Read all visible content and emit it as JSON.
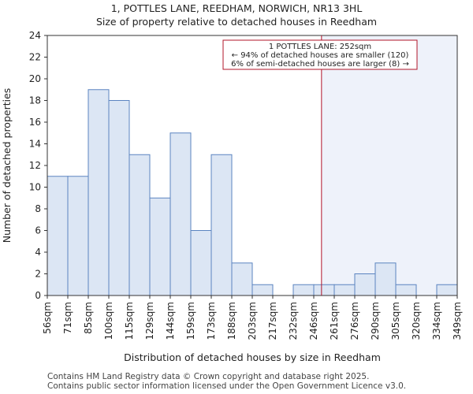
{
  "chart_data": {
    "type": "bar",
    "title": "1, POTTLES LANE, REEDHAM, NORWICH, NR13 3HL",
    "subtitle": "Size of property relative to detached houses in Reedham",
    "xlabel": "Distribution of detached houses by size in Reedham",
    "ylabel": "Number of detached properties",
    "ylim": [
      0,
      24
    ],
    "yticks": [
      0,
      2,
      4,
      6,
      8,
      10,
      12,
      14,
      16,
      18,
      20,
      22,
      24
    ],
    "xtick_labels": [
      "56sqm",
      "71sqm",
      "85sqm",
      "100sqm",
      "115sqm",
      "129sqm",
      "144sqm",
      "159sqm",
      "173sqm",
      "188sqm",
      "203sqm",
      "217sqm",
      "232sqm",
      "246sqm",
      "261sqm",
      "276sqm",
      "290sqm",
      "305sqm",
      "320sqm",
      "334sqm",
      "349sqm"
    ],
    "values": [
      11,
      11,
      19,
      18,
      13,
      9,
      15,
      6,
      13,
      3,
      1,
      0,
      1,
      1,
      1,
      2,
      3,
      1,
      0,
      1
    ],
    "bar_color": "#dce6f4",
    "bar_edge_color": "#5b84c0",
    "highlight_region_color": "#eef2fa",
    "marker": {
      "value_sqm": 252,
      "color": "#b0152a",
      "annotation": [
        "1 POTTLES LANE: 252sqm",
        "← 94% of detached houses are smaller (120)",
        "6% of semi-detached houses are larger (8) →"
      ]
    },
    "grid": false
  },
  "footer": {
    "line1": "Contains HM Land Registry data © Crown copyright and database right 2025.",
    "line2": "Contains public sector information licensed under the Open Government Licence v3.0."
  }
}
